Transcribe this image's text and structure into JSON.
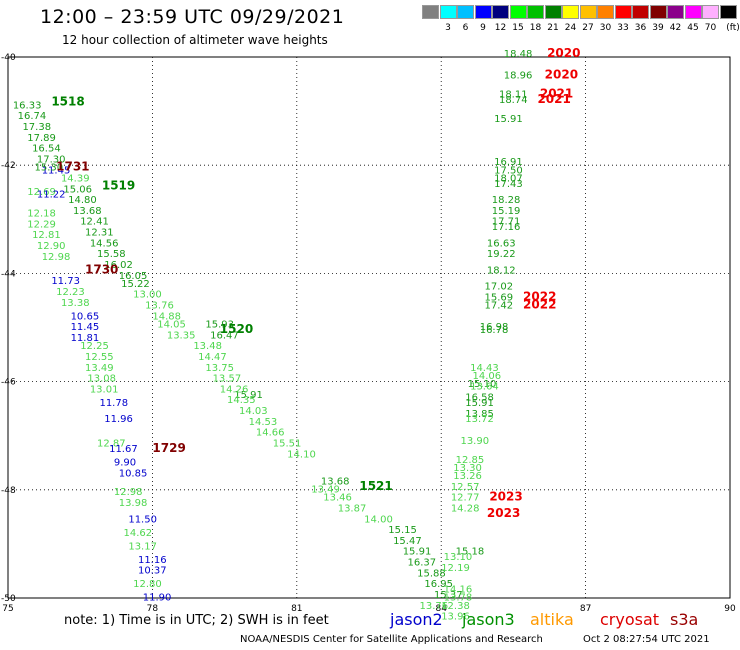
{
  "title": "12:00 – 23:59 UTC 09/29/2021",
  "subtitle": "12 hour collection of altimeter wave heights",
  "color_legend": {
    "unit": "(ft)",
    "items": [
      {
        "label": "",
        "color": "#808080"
      },
      {
        "label": "3",
        "color": "#00ffff"
      },
      {
        "label": "6",
        "color": "#00c0ff"
      },
      {
        "label": "9",
        "color": "#0000ff"
      },
      {
        "label": "12",
        "color": "#00007f"
      },
      {
        "label": "15",
        "color": "#00ff00"
      },
      {
        "label": "18",
        "color": "#00c000"
      },
      {
        "label": "21",
        "color": "#008000"
      },
      {
        "label": "24",
        "color": "#ffff00"
      },
      {
        "label": "27",
        "color": "#ffc000"
      },
      {
        "label": "30",
        "color": "#ff8000"
      },
      {
        "label": "33",
        "color": "#ff0000"
      },
      {
        "label": "36",
        "color": "#c00000"
      },
      {
        "label": "39",
        "color": "#800000"
      },
      {
        "label": "42",
        "color": "#8b008b"
      },
      {
        "label": "45",
        "color": "#ff00ff"
      },
      {
        "label": "70",
        "color": "#ffb0ff"
      },
      {
        "label": "",
        "color": "#000000"
      }
    ]
  },
  "footer": {
    "note": "note:  1) Time is in UTC;  2) SWH is in feet",
    "satellites": [
      {
        "name": "jason2",
        "color": "#0000cc"
      },
      {
        "name": "jason3",
        "color": "#009000"
      },
      {
        "name": "altika",
        "color": "#ff9900"
      },
      {
        "name": "cryosat",
        "color": "#dd0000"
      },
      {
        "name": "s3a",
        "color": "#990000"
      }
    ],
    "credit": "NOAA/NESDIS Center for Satellite Applications and Research",
    "timestamp": "Oct  2 08:27:54 UTC 2021"
  },
  "chart_data": {
    "type": "scatter",
    "xlim": [
      75,
      90
    ],
    "ylim": [
      -50,
      -40
    ],
    "x_ticks": [
      "75",
      "78",
      "81",
      "84",
      "87",
      "90"
    ],
    "y_ticks": [
      "-40",
      "-42",
      "-44",
      "-46",
      "-48",
      "-50"
    ],
    "grid": "dotted",
    "series": [
      {
        "color": "#1a9a1a",
        "points": [
          {
            "x": 75.1,
            "y": -40.95,
            "label": "16.33"
          },
          {
            "x": 75.2,
            "y": -41.15,
            "label": "16.74"
          },
          {
            "x": 75.3,
            "y": -41.35,
            "label": "17.38"
          },
          {
            "x": 75.4,
            "y": -41.55,
            "label": "17.89"
          },
          {
            "x": 75.5,
            "y": -41.75,
            "label": "16.54"
          },
          {
            "x": 75.6,
            "y": -41.95,
            "label": "17.30"
          },
          {
            "x": 76.15,
            "y": -42.5,
            "label": "15.06"
          },
          {
            "x": 76.25,
            "y": -42.7,
            "label": "14.80"
          },
          {
            "x": 76.35,
            "y": -42.9,
            "label": "13.68"
          },
          {
            "x": 76.5,
            "y": -43.1,
            "label": "12.41"
          },
          {
            "x": 76.6,
            "y": -43.3,
            "label": "12.31"
          },
          {
            "x": 76.7,
            "y": -43.5,
            "label": "14.56"
          },
          {
            "x": 76.85,
            "y": -43.7,
            "label": "15.58"
          },
          {
            "x": 77.0,
            "y": -43.9,
            "label": "16.02"
          },
          {
            "x": 77.3,
            "y": -44.1,
            "label": "16.05"
          },
          {
            "x": 77.35,
            "y": -44.25,
            "label": "15.22"
          },
          {
            "x": 79.1,
            "y": -45.0,
            "label": "15.93"
          },
          {
            "x": 79.2,
            "y": -45.2,
            "label": "16.47"
          },
          {
            "x": 79.7,
            "y": -46.3,
            "label": "15.91"
          },
          {
            "x": 81.5,
            "y": -47.9,
            "label": "13.68"
          },
          {
            "x": 82.9,
            "y": -48.8,
            "label": "15.15"
          },
          {
            "x": 83.0,
            "y": -49.0,
            "label": "15.47"
          },
          {
            "x": 83.2,
            "y": -49.2,
            "label": "15.91"
          },
          {
            "x": 83.3,
            "y": -49.4,
            "label": "16.37"
          },
          {
            "x": 83.5,
            "y": -49.6,
            "label": "15.88"
          },
          {
            "x": 83.65,
            "y": -49.8,
            "label": "16.95"
          },
          {
            "x": 83.85,
            "y": -50.0,
            "label": "15.37"
          },
          {
            "x": 85.3,
            "y": -40.0,
            "label": "18.48"
          },
          {
            "x": 85.3,
            "y": -40.4,
            "label": "18.96"
          },
          {
            "x": 85.2,
            "y": -40.75,
            "label": "18.11"
          },
          {
            "x": 85.2,
            "y": -40.85,
            "label": "18.74"
          },
          {
            "x": 85.1,
            "y": -41.2,
            "label": "15.91"
          },
          {
            "x": 85.1,
            "y": -42.0,
            "label": "16.91"
          },
          {
            "x": 85.1,
            "y": -42.15,
            "label": "17.50"
          },
          {
            "x": 85.1,
            "y": -42.3,
            "label": "18.07"
          },
          {
            "x": 85.1,
            "y": -42.4,
            "label": "17.43"
          },
          {
            "x": 85.05,
            "y": -42.7,
            "label": "18.28"
          },
          {
            "x": 85.05,
            "y": -42.9,
            "label": "15.19"
          },
          {
            "x": 85.05,
            "y": -43.1,
            "label": "17.71"
          },
          {
            "x": 85.05,
            "y": -43.2,
            "label": "17.16"
          },
          {
            "x": 84.95,
            "y": -43.5,
            "label": "16.63"
          },
          {
            "x": 84.95,
            "y": -43.7,
            "label": "19.22"
          },
          {
            "x": 84.95,
            "y": -44.0,
            "label": "18.12"
          },
          {
            "x": 84.9,
            "y": -44.3,
            "label": "17.02"
          },
          {
            "x": 84.9,
            "y": -44.5,
            "label": "15.69"
          },
          {
            "x": 84.9,
            "y": -44.65,
            "label": "17.42"
          },
          {
            "x": 84.8,
            "y": -45.05,
            "label": "16.98"
          },
          {
            "x": 84.8,
            "y": -45.1,
            "label": "16.78"
          },
          {
            "x": 84.55,
            "y": -46.1,
            "label": "15.10"
          },
          {
            "x": 84.5,
            "y": -46.35,
            "label": "16.58"
          },
          {
            "x": 84.5,
            "y": -46.45,
            "label": "15.91"
          },
          {
            "x": 84.5,
            "y": -46.65,
            "label": "13.85"
          },
          {
            "x": 84.3,
            "y": -49.2,
            "label": "15.18"
          }
        ]
      },
      {
        "color": "#4fd64f",
        "points": [
          {
            "x": 76.1,
            "y": -42.3,
            "label": "14.39"
          },
          {
            "x": 75.4,
            "y": -42.55,
            "label": "12.69"
          },
          {
            "x": 75.4,
            "y": -42.95,
            "label": "12.18"
          },
          {
            "x": 75.4,
            "y": -43.15,
            "label": "12.29"
          },
          {
            "x": 75.5,
            "y": -43.35,
            "label": "12.81"
          },
          {
            "x": 75.6,
            "y": -43.55,
            "label": "12.90"
          },
          {
            "x": 75.7,
            "y": -43.75,
            "label": "12.98"
          },
          {
            "x": 76.0,
            "y": -44.4,
            "label": "12.23"
          },
          {
            "x": 76.1,
            "y": -44.6,
            "label": "13.38"
          },
          {
            "x": 76.5,
            "y": -45.4,
            "label": "12.25"
          },
          {
            "x": 76.6,
            "y": -45.6,
            "label": "12.55"
          },
          {
            "x": 76.6,
            "y": -45.8,
            "label": "13.49"
          },
          {
            "x": 76.65,
            "y": -46.0,
            "label": "13.08"
          },
          {
            "x": 76.7,
            "y": -46.2,
            "label": "13.01"
          },
          {
            "x": 76.85,
            "y": -47.2,
            "label": "12.87"
          },
          {
            "x": 77.2,
            "y": -48.1,
            "label": "12.98"
          },
          {
            "x": 77.3,
            "y": -48.3,
            "label": "13.98"
          },
          {
            "x": 77.4,
            "y": -48.85,
            "label": "14.62"
          },
          {
            "x": 77.5,
            "y": -49.1,
            "label": "13.17"
          },
          {
            "x": 77.6,
            "y": -49.8,
            "label": "12.80"
          },
          {
            "x": 77.6,
            "y": -44.45,
            "label": "13.00"
          },
          {
            "x": 77.85,
            "y": -44.65,
            "label": "13.76"
          },
          {
            "x": 78.0,
            "y": -44.85,
            "label": "14.88"
          },
          {
            "x": 78.1,
            "y": -45.0,
            "label": "14.05"
          },
          {
            "x": 78.3,
            "y": -45.2,
            "label": "13.35"
          },
          {
            "x": 78.85,
            "y": -45.4,
            "label": "13.48"
          },
          {
            "x": 78.95,
            "y": -45.6,
            "label": "14.47"
          },
          {
            "x": 79.1,
            "y": -45.8,
            "label": "13.75"
          },
          {
            "x": 79.25,
            "y": -46.0,
            "label": "13.57"
          },
          {
            "x": 79.4,
            "y": -46.2,
            "label": "14.26"
          },
          {
            "x": 79.55,
            "y": -46.4,
            "label": "14.35"
          },
          {
            "x": 79.8,
            "y": -46.6,
            "label": "14.03"
          },
          {
            "x": 80.0,
            "y": -46.8,
            "label": "14.53"
          },
          {
            "x": 80.15,
            "y": -47.0,
            "label": "14.66"
          },
          {
            "x": 80.5,
            "y": -47.2,
            "label": "15.51"
          },
          {
            "x": 80.8,
            "y": -47.4,
            "label": "14.10"
          },
          {
            "x": 81.3,
            "y": -48.05,
            "label": "13.49"
          },
          {
            "x": 81.55,
            "y": -48.2,
            "label": "13.46"
          },
          {
            "x": 81.85,
            "y": -48.4,
            "label": "13.87"
          },
          {
            "x": 82.4,
            "y": -48.6,
            "label": "14.00"
          },
          {
            "x": 83.55,
            "y": -50.2,
            "label": "13.76"
          },
          {
            "x": 84.0,
            "y": -50.4,
            "label": "13.96"
          },
          {
            "x": 84.6,
            "y": -45.8,
            "label": "14.43"
          },
          {
            "x": 84.65,
            "y": -45.95,
            "label": "14.06"
          },
          {
            "x": 84.6,
            "y": -46.15,
            "label": "13.64"
          },
          {
            "x": 84.5,
            "y": -46.75,
            "label": "13.72"
          },
          {
            "x": 84.4,
            "y": -47.15,
            "label": "13.90"
          },
          {
            "x": 84.3,
            "y": -47.5,
            "label": "12.85"
          },
          {
            "x": 84.25,
            "y": -47.65,
            "label": "13.30"
          },
          {
            "x": 84.25,
            "y": -47.8,
            "label": "13.26"
          },
          {
            "x": 84.2,
            "y": -48.0,
            "label": "12.57"
          },
          {
            "x": 84.2,
            "y": -48.2,
            "label": "12.77"
          },
          {
            "x": 84.2,
            "y": -48.4,
            "label": "14.28"
          },
          {
            "x": 84.05,
            "y": -49.3,
            "label": "13.10"
          },
          {
            "x": 84.0,
            "y": -49.5,
            "label": "12.19"
          },
          {
            "x": 84.05,
            "y": -49.9,
            "label": "14.16"
          },
          {
            "x": 84.05,
            "y": -50.05,
            "label": "13.78"
          },
          {
            "x": 84.0,
            "y": -50.2,
            "label": "12.38"
          }
        ]
      },
      {
        "color": "#0000cc",
        "points": [
          {
            "x": 75.7,
            "y": -42.15,
            "label": "11.45"
          },
          {
            "x": 75.6,
            "y": -42.6,
            "label": "11.22"
          },
          {
            "x": 75.9,
            "y": -44.2,
            "label": "11.73"
          },
          {
            "x": 76.3,
            "y": -44.85,
            "label": "10.65"
          },
          {
            "x": 76.3,
            "y": -45.05,
            "label": "11.45"
          },
          {
            "x": 76.3,
            "y": -45.25,
            "label": "11.81"
          },
          {
            "x": 76.9,
            "y": -46.45,
            "label": "11.78"
          },
          {
            "x": 77.0,
            "y": -46.75,
            "label": "11.96"
          },
          {
            "x": 77.1,
            "y": -47.3,
            "label": "11.67"
          },
          {
            "x": 77.2,
            "y": -47.55,
            "label": "9.90"
          },
          {
            "x": 77.3,
            "y": -47.75,
            "label": "10.85"
          },
          {
            "x": 77.5,
            "y": -48.6,
            "label": "11.50"
          },
          {
            "x": 77.7,
            "y": -49.35,
            "label": "11.16"
          },
          {
            "x": 77.7,
            "y": -49.55,
            "label": "10.37"
          },
          {
            "x": 77.8,
            "y": -50.05,
            "label": "11.90"
          }
        ]
      },
      {
        "color": "#1a9a1a",
        "points": [
          {
            "x": 75.55,
            "y": -42.1,
            "label": "15.30"
          }
        ]
      }
    ],
    "track_labels": [
      {
        "x": 75.9,
        "y": -40.9,
        "label": "1518",
        "color": "#008000"
      },
      {
        "x": 76.95,
        "y": -42.45,
        "label": "1519",
        "color": "#008000"
      },
      {
        "x": 79.4,
        "y": -45.1,
        "label": "1520",
        "color": "#008000"
      },
      {
        "x": 82.3,
        "y": -48.0,
        "label": "1521",
        "color": "#008000"
      },
      {
        "x": 76.0,
        "y": -42.1,
        "label": "1731",
        "color": "#800000"
      },
      {
        "x": 76.6,
        "y": -44.0,
        "label": "1730",
        "color": "#800000"
      },
      {
        "x": 78.0,
        "y": -47.3,
        "label": "1729",
        "color": "#800000"
      },
      {
        "x": 86.2,
        "y": -40.0,
        "label": "2020",
        "color": "#ee0000"
      },
      {
        "x": 86.15,
        "y": -40.4,
        "label": "2020",
        "color": "#ee0000"
      },
      {
        "x": 86.05,
        "y": -40.75,
        "label": "2021",
        "color": "#ee0000"
      },
      {
        "x": 86.0,
        "y": -40.85,
        "label": "2021",
        "color": "#ee0000"
      },
      {
        "x": 85.7,
        "y": -44.5,
        "label": "2022",
        "color": "#ee0000"
      },
      {
        "x": 85.7,
        "y": -44.65,
        "label": "2022",
        "color": "#ee0000"
      },
      {
        "x": 85.0,
        "y": -48.2,
        "label": "2023",
        "color": "#ee0000"
      },
      {
        "x": 84.95,
        "y": -48.5,
        "label": "2023",
        "color": "#ee0000"
      }
    ]
  }
}
